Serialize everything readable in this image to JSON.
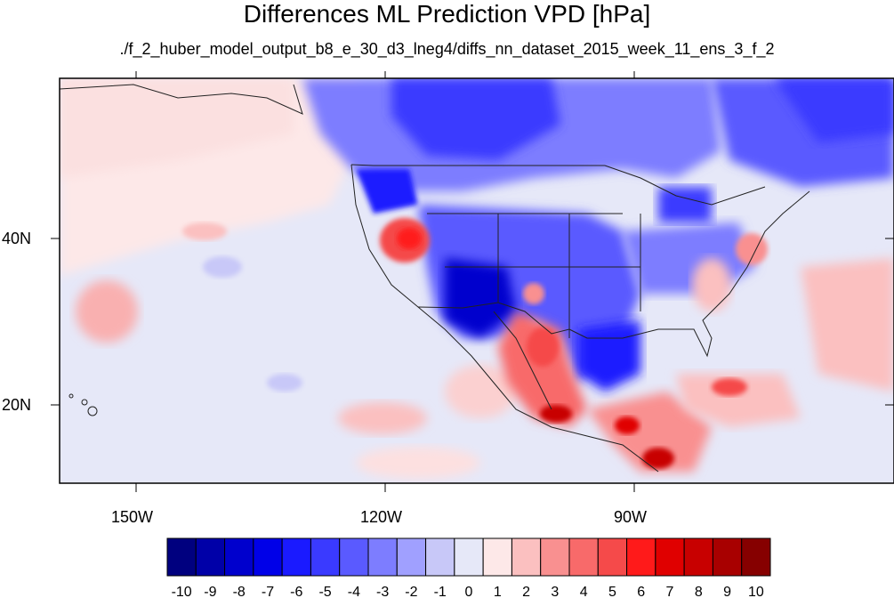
{
  "title": "Differences ML Prediction VPD [hPa]",
  "subtitle": "./f_2_huber_model_output_b8_e_30_d3_lneg4/diffs_nn_dataset_2015_week_11_ens_3_f_2",
  "axes": {
    "lat_labels": [
      "40N",
      "20N"
    ],
    "lon_labels": [
      "150W",
      "120W",
      "90W"
    ]
  },
  "colorbar": {
    "labels": [
      "-10",
      "-9",
      "-8",
      "-7",
      "-6",
      "-5",
      "-4",
      "-3",
      "-2",
      "-1",
      "0",
      "1",
      "2",
      "3",
      "4",
      "5",
      "6",
      "7",
      "8",
      "9",
      "10"
    ],
    "colors": [
      "#00007f",
      "#0000a8",
      "#0000cd",
      "#0000e8",
      "#1a1aff",
      "#3a3aff",
      "#5a5aff",
      "#7d7dff",
      "#a0a0ff",
      "#c8c8f8",
      "#e6e8f8",
      "#fde8e8",
      "#fbc0c0",
      "#f99090",
      "#f86a6a",
      "#f54a4a",
      "#ff1a1a",
      "#e00000",
      "#c80000",
      "#a80000",
      "#860000"
    ]
  },
  "colors": {
    "ocean_background": "#e6e8f8",
    "pacific_pink": "#fde8e8"
  }
}
